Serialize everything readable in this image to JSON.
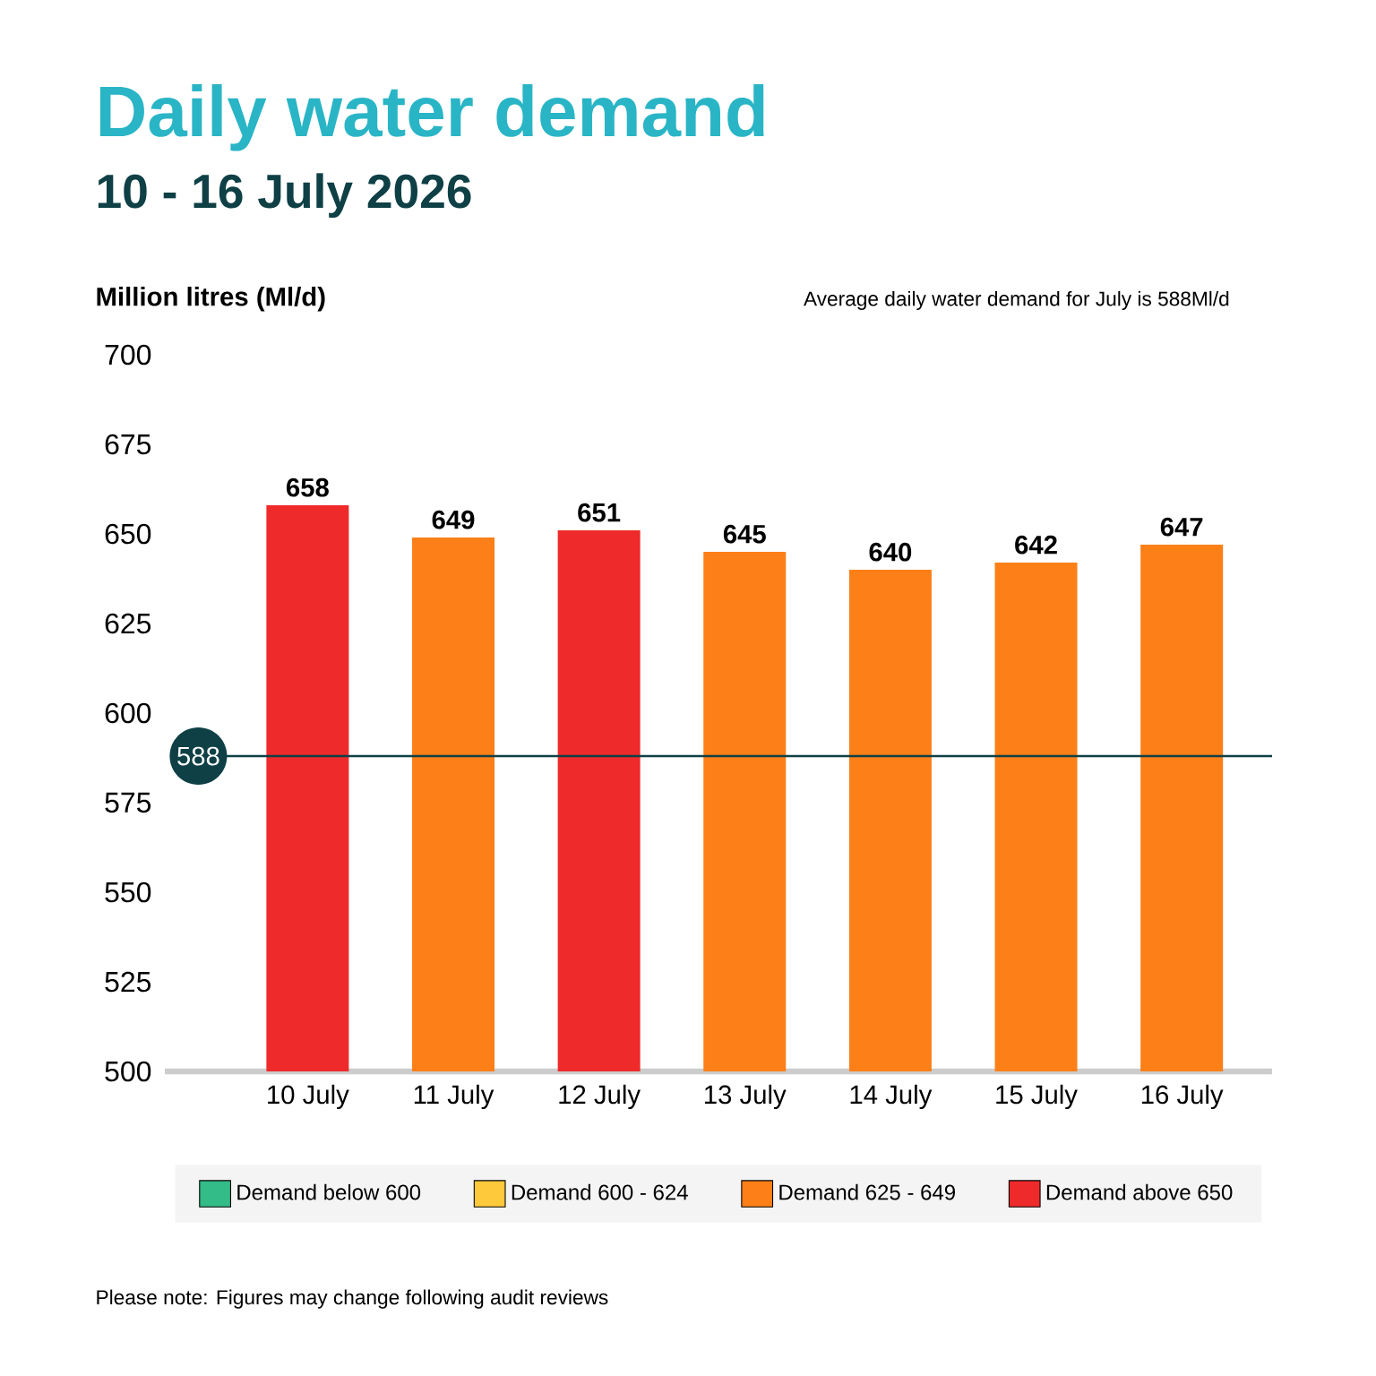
{
  "chart_data": {
    "type": "bar",
    "title": "Daily water demand",
    "subtitle": "10 - 16 July 2026",
    "ylabel": "Million litres (Ml/d)",
    "categories": [
      "10 July",
      "11 July",
      "12 July",
      "13 July",
      "14 July",
      "15 July",
      "16 July"
    ],
    "series": [
      {
        "name": "Demand below 600",
        "color": "#33bb88",
        "values": [
          null,
          null,
          null,
          null,
          null,
          null,
          null
        ]
      },
      {
        "name": "Demand 600 - 624",
        "color": "#fec93a",
        "values": [
          null,
          null,
          null,
          null,
          null,
          null,
          null
        ]
      },
      {
        "name": "Demand 625 - 649",
        "color": "#fc7f18",
        "values": [
          null,
          649,
          null,
          645,
          640,
          642,
          647
        ]
      },
      {
        "name": "Demand above 650",
        "color": "#ee2a2b",
        "values": [
          658,
          null,
          651,
          null,
          null,
          null,
          null
        ]
      }
    ],
    "ylim": [
      500,
      700
    ],
    "yticks": [
      500,
      525,
      550,
      575,
      600,
      625,
      650,
      675,
      700
    ],
    "data_labels": true,
    "legend": "bottom",
    "ref_lines": [
      {
        "axis": "y",
        "value": 588,
        "label": "588",
        "color": "#0e4046"
      }
    ],
    "annotations": [
      "Average daily water demand for July is 588Ml/d",
      "Please note: Figures may change following audit reviews"
    ]
  }
}
